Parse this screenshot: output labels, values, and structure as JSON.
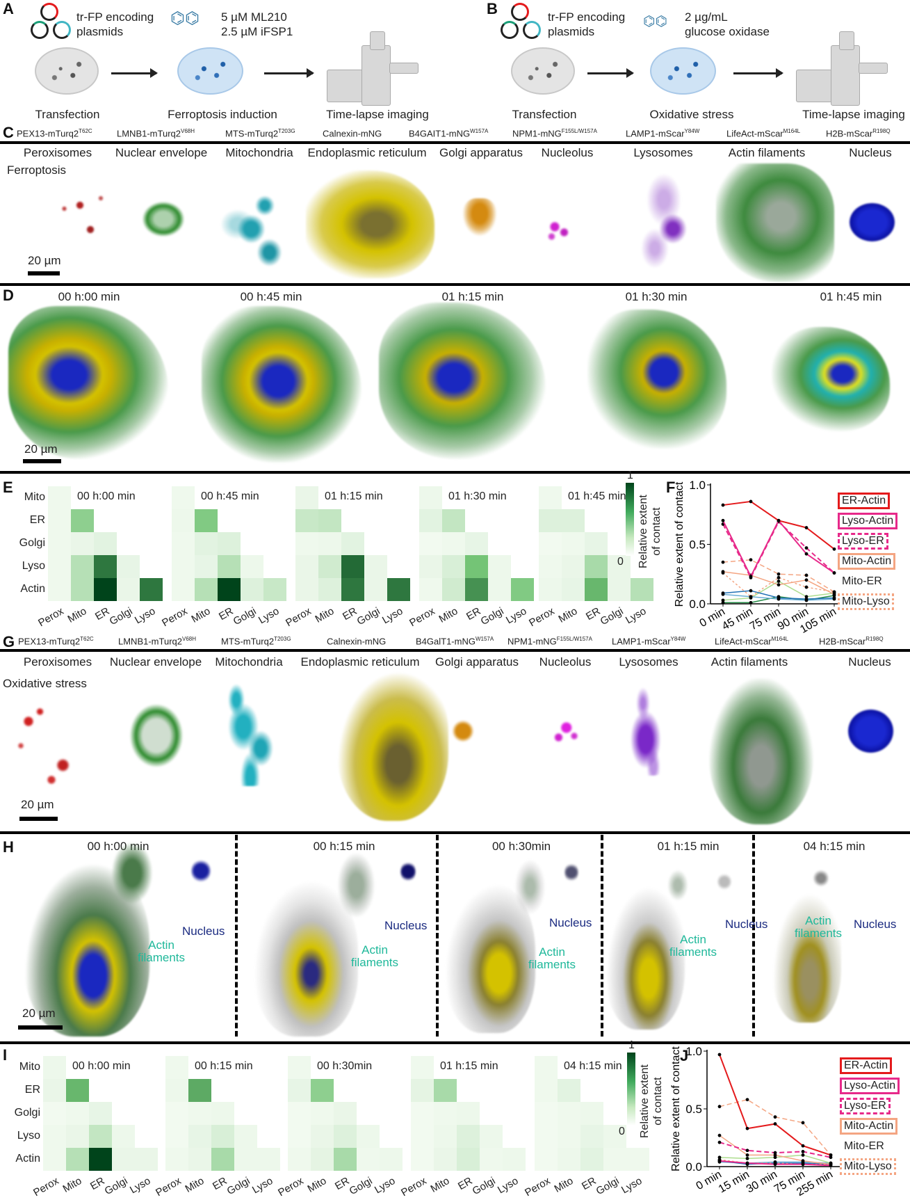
{
  "panels": {
    "A": "A",
    "B": "B",
    "C": "C",
    "D": "D",
    "E": "E",
    "F": "F",
    "G": "G",
    "H": "H",
    "I": "I",
    "J": "J"
  },
  "schematic_a": {
    "plasmid_line1": "tr-FP encoding",
    "plasmid_line2": "plasmids",
    "drug_line1": "5 µM ML210",
    "drug_line2": "2.5 µM iFSP1",
    "steps": [
      "Transfection",
      "Ferroptosis induction",
      "Time-lapse imaging"
    ]
  },
  "schematic_b": {
    "plasmid_line1": "tr-FP encoding",
    "plasmid_line2": "plasmids",
    "drug_line1": "2 µg/mL",
    "drug_line2": "glucose oxidase",
    "steps": [
      "Transfection",
      "Oxidative stress",
      "Time-lapse imaging"
    ]
  },
  "constructs_c": [
    {
      "name": "PEX13-mTurq2",
      "sup": "T62C"
    },
    {
      "name": "LMNB1-mTurq2",
      "sup": "V68H"
    },
    {
      "name": "MTS-mTurq2",
      "sup": "T203G"
    },
    {
      "name": "Calnexin-mNG",
      "sup": ""
    },
    {
      "name": "B4GAIT1-mNG",
      "sup": "W157A"
    },
    {
      "name": "NPM1-mNG",
      "sup": "F155L/W157A"
    },
    {
      "name": "LAMP1-mScar",
      "sup": "Y84W"
    },
    {
      "name": "LifeAct-mScar",
      "sup": "M164L"
    },
    {
      "name": "H2B-mScar",
      "sup": "R198Q"
    }
  ],
  "constructs_g": [
    {
      "name": "PEX13-mTurq2",
      "sup": "T62C"
    },
    {
      "name": "LMNB1-mTurq2",
      "sup": "V68H"
    },
    {
      "name": "MTS-mTurq2",
      "sup": "T203G"
    },
    {
      "name": "Calnexin-mNG",
      "sup": ""
    },
    {
      "name": "B4GalT1-mNG",
      "sup": "W157A"
    },
    {
      "name": "NPM1-mNG",
      "sup": "F155L/W157A"
    },
    {
      "name": "LAMP1-mScar",
      "sup": "Y84W"
    },
    {
      "name": "LifeAct-mScar",
      "sup": "M164L"
    },
    {
      "name": "H2B-mScar",
      "sup": "R198Q"
    }
  ],
  "organelles": [
    "Peroxisomes",
    "Nuclear envelope",
    "Mitochondria",
    "Endoplasmic reticulum",
    "Golgi apparatus",
    "Nucleolus",
    "Lysosomes",
    "Actin filaments",
    "Nucleus"
  ],
  "panel_c": {
    "condition": "Ferroptosis",
    "scale": "20 µm"
  },
  "panel_d": {
    "times": [
      "00 h:00 min",
      "00 h:45 min",
      "01 h:15 min",
      "01 h:30 min",
      "01 h:45 min"
    ],
    "scale": "20 µm"
  },
  "panel_g": {
    "condition": "Oxidative stress",
    "scale": "20 µm"
  },
  "panel_h": {
    "times": [
      "00 h:00 min",
      "00 h:15 min",
      "00 h:30min",
      "01 h:15 min",
      "04 h:15 min"
    ],
    "actin_line1": "Actin",
    "actin_line2": "filaments",
    "nucleus": "Nucleus",
    "scale": "20 µm"
  },
  "colors": {
    "er_actin": "#e41a1c",
    "lyso_actin": "#e7298a",
    "mito": "#f4a582",
    "heat_max": "#00441b"
  },
  "chart_data": [
    {
      "type": "heatmap",
      "panel": "E",
      "rows": [
        "Mito",
        "ER",
        "Golgi",
        "Lyso",
        "Actin"
      ],
      "cols": [
        "Perox",
        "Mito",
        "ER",
        "Golgi",
        "Lyso"
      ],
      "colorbar": {
        "min": "0",
        "max": "1",
        "label_line1": "Relative extent",
        "label_line2": "of contact"
      },
      "maps": [
        {
          "title": "00 h:00 min",
          "values": [
            [
              0.03
            ],
            [
              0.03,
              0.4
            ],
            [
              0.03,
              0.05,
              0.08
            ],
            [
              0.03,
              0.25,
              0.8,
              0.06
            ],
            [
              0.03,
              0.25,
              1.0,
              0.05,
              0.8
            ]
          ]
        },
        {
          "title": "00 h:45 min",
          "values": [
            [
              0.03
            ],
            [
              0.04,
              0.45
            ],
            [
              0.03,
              0.08,
              0.1
            ],
            [
              0.03,
              0.06,
              0.25,
              0.04
            ],
            [
              0.03,
              0.25,
              1.0,
              0.1,
              0.18
            ]
          ]
        },
        {
          "title": "01 h:15 min",
          "values": [
            [
              0.05
            ],
            [
              0.18,
              0.2
            ],
            [
              0.03,
              0.04,
              0.08
            ],
            [
              0.05,
              0.15,
              0.85,
              0.05
            ],
            [
              0.05,
              0.1,
              0.8,
              0.05,
              0.8
            ]
          ]
        },
        {
          "title": "01 h:30 min",
          "values": [
            [
              0.04
            ],
            [
              0.08,
              0.2
            ],
            [
              0.02,
              0.03,
              0.06
            ],
            [
              0.05,
              0.12,
              0.5,
              0.04
            ],
            [
              0.03,
              0.15,
              0.7,
              0.04,
              0.45
            ]
          ]
        },
        {
          "title": "01 h:45 min",
          "values": [
            [
              0.03
            ],
            [
              0.1,
              0.1
            ],
            [
              0.02,
              0.03,
              0.06
            ],
            [
              0.03,
              0.05,
              0.3,
              0.05
            ],
            [
              0.04,
              0.06,
              0.55,
              0.05,
              0.25
            ]
          ]
        }
      ]
    },
    {
      "type": "line",
      "panel": "F",
      "x": [
        "0 min",
        "45 min",
        "75 min",
        "90 min",
        "105 min"
      ],
      "ylabel": "Relative extent of contact",
      "ylim": [
        0,
        1
      ],
      "yticks": [
        "0.0",
        "0.5",
        "1.0"
      ],
      "series": [
        {
          "name": "ER-Actin",
          "color": "#e41a1c",
          "dash": "solid",
          "values": [
            0.83,
            0.86,
            0.7,
            0.64,
            0.46
          ]
        },
        {
          "name": "Lyso-Actin",
          "color": "#e7298a",
          "dash": "solid",
          "values": [
            0.7,
            0.23,
            0.7,
            0.42,
            0.26
          ]
        },
        {
          "name": "Lyso-ER",
          "color": "#e7298a",
          "dash": "dashed",
          "values": [
            0.67,
            0.22,
            0.69,
            0.47,
            0.26
          ]
        },
        {
          "name": "Mito-Actin",
          "color": "#f4a582",
          "dash": "solid",
          "values": [
            0.27,
            0.24,
            0.16,
            0.2,
            0.08
          ]
        },
        {
          "name": "Mito-ER",
          "color": "#f4a582",
          "dash": "dashed",
          "values": [
            0.35,
            0.37,
            0.25,
            0.24,
            0.1
          ]
        },
        {
          "name": "Mito-Lyso",
          "color": "#f4a582",
          "dash": "dotted",
          "values": [
            0.26,
            0.06,
            0.22,
            0.14,
            0.1
          ]
        },
        {
          "name": "",
          "color": "#2171b5",
          "dash": "solid",
          "values": [
            0.09,
            0.11,
            0.05,
            0.04,
            0.05
          ]
        },
        {
          "name": "",
          "color": "#6baed6",
          "dash": "solid",
          "values": [
            0.08,
            0.06,
            0.04,
            0.03,
            0.04
          ]
        },
        {
          "name": "",
          "color": "#addd8e",
          "dash": "solid",
          "values": [
            0.03,
            0.05,
            0.19,
            0.06,
            0.09
          ]
        },
        {
          "name": "",
          "color": "#238b45",
          "dash": "solid",
          "values": [
            0.01,
            0.01,
            0.06,
            0.03,
            0.07
          ]
        }
      ]
    },
    {
      "type": "heatmap",
      "panel": "I",
      "rows": [
        "Mito",
        "ER",
        "Golgi",
        "Lyso",
        "Actin"
      ],
      "cols": [
        "Perox",
        "Mito",
        "ER",
        "Golgi",
        "Lyso"
      ],
      "colorbar": {
        "min": "0",
        "max": "1",
        "label_line1": "Relative extent",
        "label_line2": "of contact"
      },
      "maps": [
        {
          "title": "00 h:00 min",
          "values": [
            [
              0.04
            ],
            [
              0.05,
              0.55
            ],
            [
              0.02,
              0.03,
              0.06
            ],
            [
              0.03,
              0.05,
              0.2,
              0.04
            ],
            [
              0.03,
              0.25,
              1.0,
              0.05,
              0.05
            ]
          ]
        },
        {
          "title": "00 h:15 min",
          "values": [
            [
              0.03
            ],
            [
              0.04,
              0.6
            ],
            [
              0.02,
              0.03,
              0.04
            ],
            [
              0.02,
              0.06,
              0.12,
              0.04
            ],
            [
              0.03,
              0.05,
              0.3,
              0.04,
              0.04
            ]
          ]
        },
        {
          "title": "00 h:30min",
          "values": [
            [
              0.03
            ],
            [
              0.06,
              0.4
            ],
            [
              0.02,
              0.03,
              0.05
            ],
            [
              0.02,
              0.05,
              0.1,
              0.04
            ],
            [
              0.03,
              0.07,
              0.3,
              0.03,
              0.04
            ]
          ]
        },
        {
          "title": "01 h:15 min",
          "values": [
            [
              0.03
            ],
            [
              0.07,
              0.3
            ],
            [
              0.02,
              0.03,
              0.04
            ],
            [
              0.02,
              0.04,
              0.1,
              0.04
            ],
            [
              0.02,
              0.05,
              0.12,
              0.03,
              0.04
            ]
          ]
        },
        {
          "title": "04 h:15 min",
          "values": [
            [
              0.03
            ],
            [
              0.03,
              0.08
            ],
            [
              0.02,
              0.03,
              0.04
            ],
            [
              0.02,
              0.03,
              0.06,
              0.04
            ],
            [
              0.02,
              0.04,
              0.08,
              0.03,
              0.03
            ]
          ]
        }
      ]
    },
    {
      "type": "line",
      "panel": "J",
      "x": [
        "0 min",
        "15 min",
        "30 min",
        "75 min",
        "255 min"
      ],
      "ylabel": "Relative extent of contact",
      "ylim": [
        0,
        1
      ],
      "yticks": [
        "0.0",
        "0.5",
        "1.0"
      ],
      "series": [
        {
          "name": "ER-Actin",
          "color": "#e41a1c",
          "dash": "solid",
          "values": [
            0.97,
            0.33,
            0.37,
            0.18,
            0.1
          ]
        },
        {
          "name": "Lyso-Actin",
          "color": "#e7298a",
          "dash": "solid",
          "values": [
            0.05,
            0.03,
            0.02,
            0.02,
            0.01
          ]
        },
        {
          "name": "Lyso-ER",
          "color": "#e7298a",
          "dash": "dashed",
          "values": [
            0.21,
            0.14,
            0.12,
            0.13,
            0.08
          ]
        },
        {
          "name": "Mito-Actin",
          "color": "#f4a582",
          "dash": "solid",
          "values": [
            0.27,
            0.1,
            0.1,
            0.05,
            0.02
          ]
        },
        {
          "name": "Mito-ER",
          "color": "#f4a582",
          "dash": "dashed",
          "values": [
            0.52,
            0.58,
            0.43,
            0.38,
            0.1
          ]
        },
        {
          "name": "Mito-Lyso",
          "color": "#f4a582",
          "dash": "dotted",
          "values": [
            0.06,
            0.03,
            0.03,
            0.02,
            0.02
          ]
        },
        {
          "name": "",
          "color": "#addd8e",
          "dash": "solid",
          "values": [
            0.08,
            0.07,
            0.08,
            0.1,
            0.03
          ]
        },
        {
          "name": "",
          "color": "#2171b5",
          "dash": "solid",
          "values": [
            0.05,
            0.02,
            0.03,
            0.03,
            0.02
          ]
        },
        {
          "name": "",
          "color": "#6baed6",
          "dash": "solid",
          "values": [
            0.04,
            0.03,
            0.04,
            0.04,
            0.03
          ]
        }
      ]
    }
  ]
}
